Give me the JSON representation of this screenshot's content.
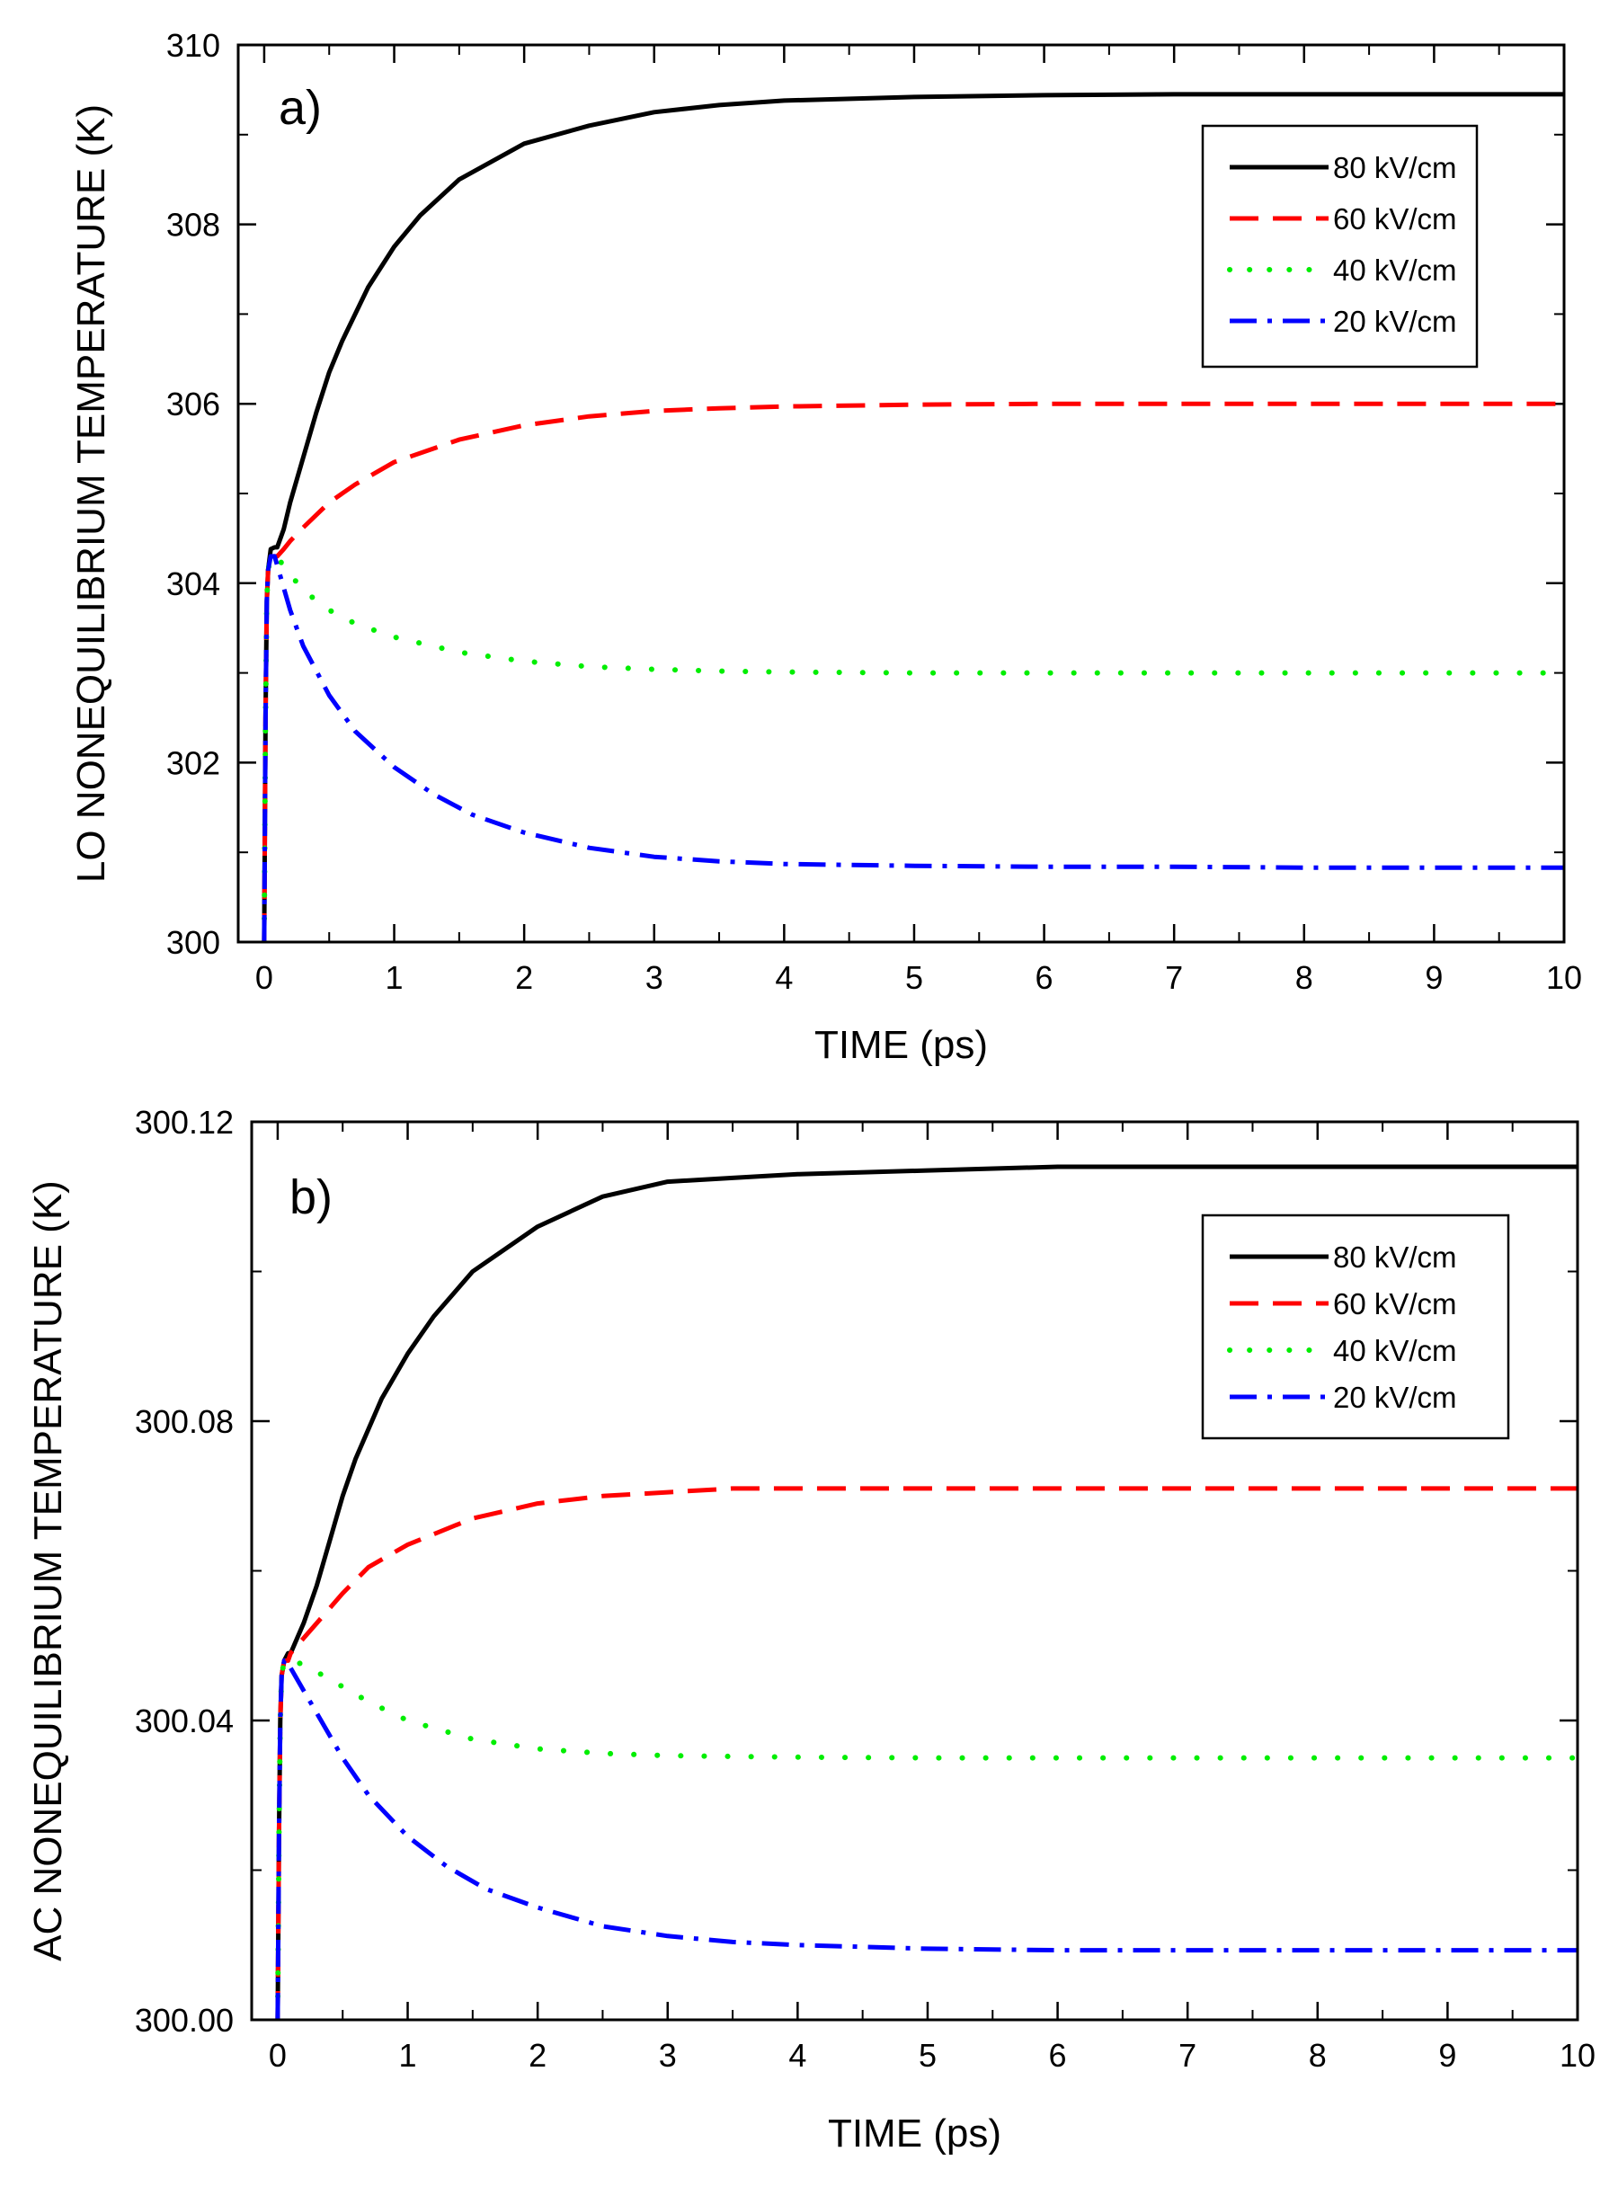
{
  "chart_data": [
    {
      "type": "line",
      "panel_label": "a)",
      "xlabel": "TIME (ps)",
      "ylabel": "LO NONEQUILIBRIUM TEMPERATURE (K)",
      "xlim": [
        -0.2,
        10
      ],
      "ylim": [
        300,
        310
      ],
      "x_major_ticks": [
        0,
        1,
        2,
        3,
        4,
        5,
        6,
        7,
        8,
        9,
        10
      ],
      "x_tick_labels": [
        "0",
        "1",
        "2",
        "3",
        "4",
        "5",
        "6",
        "7",
        "8",
        "9",
        "10"
      ],
      "y_major_ticks": [
        300,
        302,
        304,
        306,
        308,
        310
      ],
      "y_tick_labels": [
        "300",
        "302",
        "304",
        "306",
        "308",
        "310"
      ],
      "legend_position": "top-right",
      "grid": false,
      "series": [
        {
          "name": "80 kV/cm",
          "color": "#000000",
          "dash": "solid",
          "x": [
            0,
            0.01,
            0.02,
            0.03,
            0.05,
            0.08,
            0.1,
            0.15,
            0.2,
            0.3,
            0.4,
            0.5,
            0.6,
            0.8,
            1.0,
            1.2,
            1.5,
            2.0,
            2.5,
            3.0,
            3.5,
            4.0,
            5.0,
            6.0,
            7.0,
            8.0,
            9.0,
            10.0
          ],
          "y": [
            300,
            302.5,
            303.8,
            304.15,
            304.38,
            304.4,
            304.4,
            304.6,
            304.9,
            305.4,
            305.9,
            306.35,
            306.7,
            307.3,
            307.75,
            308.1,
            308.5,
            308.9,
            309.1,
            309.25,
            309.33,
            309.38,
            309.42,
            309.44,
            309.45,
            309.45,
            309.45,
            309.45
          ]
        },
        {
          "name": "60 kV/cm",
          "color": "#ff0000",
          "dash": "long-dash",
          "x": [
            0,
            0.01,
            0.02,
            0.03,
            0.05,
            0.08,
            0.1,
            0.15,
            0.2,
            0.3,
            0.5,
            0.7,
            1.0,
            1.5,
            2.0,
            2.5,
            3.0,
            3.5,
            4.0,
            5.0,
            6.0,
            7.0,
            8.0,
            9.0,
            10.0
          ],
          "y": [
            300,
            302.5,
            303.8,
            304.15,
            304.3,
            304.3,
            304.3,
            304.38,
            304.47,
            304.62,
            304.9,
            305.1,
            305.35,
            305.6,
            305.76,
            305.86,
            305.92,
            305.95,
            305.97,
            305.99,
            306.0,
            306.0,
            306.0,
            306.0,
            306.0
          ]
        },
        {
          "name": "40 kV/cm",
          "color": "#00ee00",
          "dash": "dotted",
          "x": [
            0,
            0.01,
            0.02,
            0.03,
            0.05,
            0.08,
            0.1,
            0.15,
            0.2,
            0.3,
            0.5,
            0.7,
            1.0,
            1.5,
            2.0,
            2.5,
            3.0,
            3.5,
            4.0,
            5.0,
            6.0,
            7.0,
            8.0,
            9.0,
            10.0
          ],
          "y": [
            300,
            302.5,
            303.8,
            304.15,
            304.3,
            304.3,
            304.28,
            304.2,
            304.1,
            303.92,
            303.7,
            303.55,
            303.4,
            303.23,
            303.13,
            303.07,
            303.04,
            303.02,
            303.01,
            303.0,
            303.0,
            303.0,
            303.0,
            303.0,
            303.0
          ]
        },
        {
          "name": "20 kV/cm",
          "color": "#0000ff",
          "dash": "dash-dot",
          "x": [
            0,
            0.01,
            0.02,
            0.03,
            0.05,
            0.08,
            0.1,
            0.15,
            0.2,
            0.3,
            0.5,
            0.7,
            1.0,
            1.3,
            1.6,
            2.0,
            2.5,
            3.0,
            3.5,
            4.0,
            5.0,
            6.0,
            7.0,
            8.0,
            9.0,
            10.0
          ],
          "y": [
            300,
            302.5,
            303.8,
            304.15,
            304.3,
            304.3,
            304.2,
            303.95,
            303.7,
            303.3,
            302.75,
            302.35,
            301.95,
            301.65,
            301.42,
            301.22,
            301.05,
            300.95,
            300.9,
            300.87,
            300.85,
            300.84,
            300.84,
            300.83,
            300.83,
            300.83
          ]
        }
      ]
    },
    {
      "type": "line",
      "panel_label": "b)",
      "xlabel": "TIME (ps)",
      "ylabel": "AC NONEQUILIBRIUM TEMPERATURE (K)",
      "xlim": [
        -0.2,
        10
      ],
      "ylim": [
        300.0,
        300.12
      ],
      "x_major_ticks": [
        0,
        1,
        2,
        3,
        4,
        5,
        6,
        7,
        8,
        9,
        10
      ],
      "x_tick_labels": [
        "0",
        "1",
        "2",
        "3",
        "4",
        "5",
        "6",
        "7",
        "8",
        "9",
        "10"
      ],
      "y_major_ticks": [
        300.0,
        300.04,
        300.08,
        300.12
      ],
      "y_tick_labels": [
        "300.00",
        "300.04",
        "300.08",
        "300.12"
      ],
      "legend_position": "top-right",
      "grid": false,
      "series": [
        {
          "name": "80 kV/cm",
          "color": "#000000",
          "dash": "solid",
          "x": [
            0,
            0.01,
            0.02,
            0.03,
            0.05,
            0.08,
            0.1,
            0.15,
            0.2,
            0.3,
            0.4,
            0.5,
            0.6,
            0.8,
            1.0,
            1.2,
            1.5,
            2.0,
            2.5,
            3.0,
            3.5,
            4.0,
            5.0,
            6.0,
            7.0,
            8.0,
            9.0,
            10.0
          ],
          "y": [
            300.0,
            300.025,
            300.04,
            300.046,
            300.048,
            300.049,
            300.049,
            300.051,
            300.053,
            300.058,
            300.064,
            300.07,
            300.075,
            300.083,
            300.089,
            300.094,
            300.1,
            300.106,
            300.11,
            300.112,
            300.1125,
            300.113,
            300.1135,
            300.114,
            300.114,
            300.114,
            300.114,
            300.114
          ]
        },
        {
          "name": "60 kV/cm",
          "color": "#ff0000",
          "dash": "long-dash",
          "x": [
            0,
            0.01,
            0.02,
            0.03,
            0.05,
            0.08,
            0.1,
            0.15,
            0.2,
            0.3,
            0.5,
            0.7,
            1.0,
            1.5,
            2.0,
            2.5,
            3.0,
            3.5,
            4.0,
            5.0,
            6.0,
            7.0,
            8.0,
            9.0,
            10.0
          ],
          "y": [
            300.0,
            300.025,
            300.04,
            300.046,
            300.048,
            300.048,
            300.049,
            300.05,
            300.051,
            300.053,
            300.057,
            300.0605,
            300.0635,
            300.067,
            300.069,
            300.07,
            300.0705,
            300.071,
            300.071,
            300.071,
            300.071,
            300.071,
            300.071,
            300.071,
            300.071
          ]
        },
        {
          "name": "40 kV/cm",
          "color": "#00ee00",
          "dash": "dotted",
          "x": [
            0,
            0.01,
            0.02,
            0.03,
            0.05,
            0.08,
            0.1,
            0.15,
            0.2,
            0.3,
            0.5,
            0.7,
            1.0,
            1.5,
            2.0,
            2.5,
            3.0,
            3.5,
            4.0,
            5.0,
            6.0,
            7.0,
            8.0,
            9.0,
            10.0
          ],
          "y": [
            300.0,
            300.025,
            300.04,
            300.046,
            300.048,
            300.048,
            300.048,
            300.0478,
            300.0474,
            300.0465,
            300.0445,
            300.0425,
            300.04,
            300.0375,
            300.0362,
            300.0356,
            300.0353,
            300.0352,
            300.0351,
            300.035,
            300.035,
            300.035,
            300.035,
            300.035,
            300.035
          ]
        },
        {
          "name": "20 kV/cm",
          "color": "#0000ff",
          "dash": "dash-dot",
          "x": [
            0,
            0.01,
            0.02,
            0.03,
            0.05,
            0.08,
            0.1,
            0.15,
            0.2,
            0.3,
            0.5,
            0.7,
            1.0,
            1.3,
            1.6,
            2.0,
            2.5,
            3.0,
            3.5,
            4.0,
            5.0,
            6.0,
            7.0,
            8.0,
            9.0,
            10.0
          ],
          "y": [
            300.0,
            300.025,
            300.04,
            300.046,
            300.048,
            300.048,
            300.047,
            300.0455,
            300.044,
            300.041,
            300.035,
            300.03,
            300.0245,
            300.0205,
            300.0175,
            300.015,
            300.0125,
            300.0112,
            300.0104,
            300.01,
            300.0095,
            300.0093,
            300.0093,
            300.0093,
            300.0093,
            300.0093
          ]
        }
      ]
    }
  ]
}
